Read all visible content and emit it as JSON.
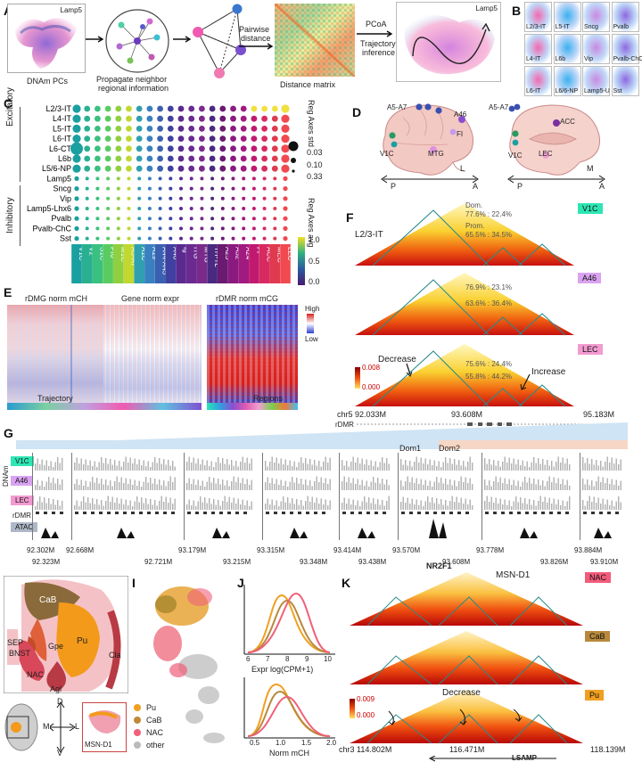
{
  "panel_letters": [
    "A",
    "B",
    "C",
    "D",
    "E",
    "F",
    "G",
    "H",
    "I",
    "J",
    "K"
  ],
  "A": {
    "umap_label": "Lamp5",
    "caption1": "DNAm PCs",
    "caption2": "Propagate neighbor",
    "caption3": "regional information",
    "pairwise": "Pairwise",
    "distance": "distance",
    "matrix_caption": "Distance matrix",
    "pcoa": "PCoA",
    "traj1": "Trajectory",
    "traj2": "inference",
    "umap2_label": "Lamp5"
  },
  "B": {
    "cells": [
      "L2/3-IT",
      "L5-IT",
      "Sncg",
      "Pvalb",
      "L4-IT",
      "L6b",
      "Vip",
      "Pvalb-ChC",
      "L6-IT",
      "L6/6-NP",
      "Lamp5-U",
      "Sst"
    ]
  },
  "C": {
    "group_excitatory": "Excitatory",
    "group_inhibitory": "Inhibitory",
    "rows": [
      "L2/3-IT",
      "L4-IT",
      "L5-IT",
      "L6-IT",
      "L6-CT",
      "L6b",
      "L5/6-NP",
      "Lamp5",
      "Sncg",
      "Vip",
      "Lamp5-Lhx6",
      "Pvalb",
      "Pvalb-ChC",
      "Sst"
    ],
    "cols": [
      "V1C",
      "V2",
      "S1C",
      "Pro",
      "M1C",
      "A5-A7",
      "A1C",
      "A19",
      "A44-A45",
      "A46",
      "Ig",
      "ITG",
      "MTG",
      "TH-TL",
      "A25",
      "A32",
      "A24",
      "FI",
      "ACC",
      "MEC",
      "LEC"
    ],
    "size_legend_title": "Reg Axes std",
    "size_legend": [
      "0.03",
      "0.10",
      "0.33"
    ],
    "color_legend_title": "Reg Axes avg",
    "color_legend": [
      "1.0",
      "0.5",
      "0.0"
    ]
  },
  "D": {
    "brain1_labels": [
      "A5-A7",
      "A46",
      "FI",
      "V1C",
      "MTG"
    ],
    "brain2_labels": [
      "A5-A7",
      "ACC",
      "V1C",
      "LEC"
    ],
    "axis1": {
      "p": "P",
      "a": "A",
      "l": "L"
    },
    "axis2": {
      "p": "P",
      "a": "A",
      "m": "M"
    }
  },
  "E": {
    "titles": [
      "rDMG norm mCH",
      "Gene norm expr",
      "rDMR norm mCG"
    ],
    "legend_high": "High",
    "legend_low": "Low",
    "label_traj": "Trajectory",
    "label_regions": "Regions"
  },
  "F": {
    "celltype": "L2/3-IT",
    "tags": [
      "V1C",
      "A46",
      "LEC"
    ],
    "tag_colors": [
      "#2ee6b4",
      "#d9a3f0",
      "#f29bd0"
    ],
    "stats": [
      [
        "Dom.",
        "77.6% : 22.4%",
        "Prom.",
        "65.5% : 34.5%"
      ],
      [
        "76.9% : 23.1%",
        "63.6% : 36.4%"
      ],
      [
        "75.6% : 24.4%",
        "55.8% : 44.2%"
      ]
    ],
    "decrease": "Decrease",
    "increase": "Increase",
    "scale_top": "0.008",
    "scale_bot": "0.000",
    "chrom": [
      "chr5 92.033M",
      "93.608M",
      "95.183M"
    ],
    "rdmr": "rDMR"
  },
  "G": {
    "dom1": "Dom1",
    "dom2": "Dom2",
    "side_dnam": "DNAm",
    "tracks": [
      "V1C",
      "A46",
      "LEC",
      "rDMR",
      "ATAC"
    ],
    "coords_top": [
      "92.302M",
      "92.668M",
      "93.179M",
      "93.315M",
      "93.414M",
      "93.570M",
      "93.778M",
      "93.884M"
    ],
    "coords_bot": [
      "92.323M",
      "92.721M",
      "93.215M",
      "93.348M",
      "93.438M",
      "93.608M",
      "93.826M",
      "93.910M"
    ],
    "gene": "NR2F1"
  },
  "H": {
    "regions": [
      "CaB",
      "Pu",
      "SEP",
      "BNST",
      "Gpe",
      "NAC",
      "Cla",
      "Agl"
    ],
    "axis": {
      "d": "D",
      "v": "V",
      "m": "M",
      "l": "L"
    },
    "inset_label": "MSN-D1"
  },
  "I": {
    "legend": [
      "Pu",
      "CaB",
      "NAC",
      "other"
    ],
    "colors": [
      "#f0a020",
      "#c08a3a",
      "#f0607a",
      "#bbbbbb"
    ]
  },
  "J": {
    "xlabel1": "Expr log(CPM+1)",
    "ticks1": [
      "6",
      "7",
      "8",
      "9",
      "10"
    ],
    "xlabel2": "Norm mCH",
    "ticks2": [
      "0.5",
      "1.0",
      "1.5",
      "2.0"
    ]
  },
  "K": {
    "celltype": "MSN-D1",
    "tags": [
      "NAC",
      "CaB",
      "Pu"
    ],
    "tag_colors": [
      "#f25c7a",
      "#b8893c",
      "#f0a020"
    ],
    "decrease": "Decrease",
    "scale_top": "0.009",
    "scale_bot": "0.000",
    "chrom": [
      "chr3 114.802M",
      "116.471M",
      "118.139M"
    ],
    "gene": "LSAMP"
  }
}
